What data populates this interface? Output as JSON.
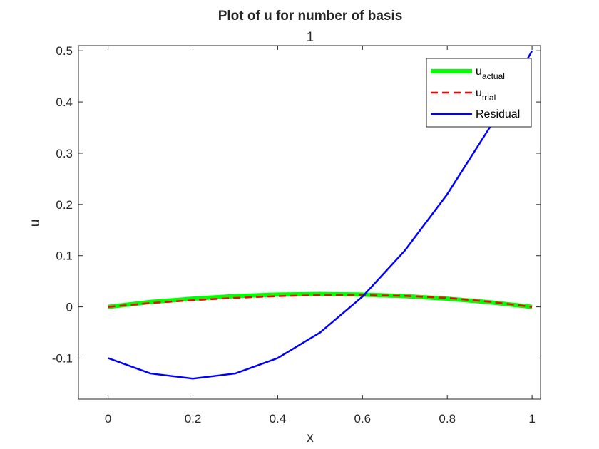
{
  "chart_data": {
    "type": "line",
    "title": "Plot of u for number of basis",
    "subtitle": "1",
    "xlabel": "x",
    "ylabel": "u",
    "xlim": [
      -0.07,
      1.02
    ],
    "ylim": [
      -0.18,
      0.51
    ],
    "xticks": [
      0,
      0.2,
      0.4,
      0.6,
      0.8,
      1
    ],
    "xtick_labels": [
      "0",
      "0.2",
      "0.4",
      "0.6",
      "0.8",
      "1"
    ],
    "yticks": [
      -0.1,
      0,
      0.1,
      0.2,
      0.3,
      0.4,
      0.5
    ],
    "ytick_labels": [
      "-0.1",
      "0",
      "0.1",
      "0.2",
      "0.3",
      "0.4",
      "0.5"
    ],
    "grid": false,
    "legend_position": "top-right",
    "series": [
      {
        "name": "u_actual",
        "legend_main": "u",
        "legend_sub": "actual",
        "color": "#00ff00",
        "style": "solid",
        "x": [
          0,
          0.1,
          0.2,
          0.3,
          0.4,
          0.5,
          0.6,
          0.7,
          0.8,
          0.9,
          1.0
        ],
        "y": [
          0,
          0.0095,
          0.016,
          0.021,
          0.024,
          0.025,
          0.024,
          0.021,
          0.016,
          0.009,
          0
        ]
      },
      {
        "name": "u_trial",
        "legend_main": "u",
        "legend_sub": "trial",
        "color": "#ff0000",
        "style": "dashed",
        "x": [
          0,
          0.1,
          0.2,
          0.3,
          0.4,
          0.5,
          0.6,
          0.7,
          0.8,
          0.9,
          1.0
        ],
        "y": [
          0,
          0.0075,
          0.013,
          0.0175,
          0.021,
          0.023,
          0.023,
          0.0215,
          0.0175,
          0.01,
          0
        ]
      },
      {
        "name": "Residual",
        "legend_main": "Residual",
        "legend_sub": "",
        "color": "#0000ff",
        "style": "solid",
        "x": [
          0,
          0.1,
          0.2,
          0.3,
          0.4,
          0.5,
          0.6,
          0.7,
          0.8,
          0.9,
          1.0
        ],
        "y": [
          -0.1,
          -0.13,
          -0.14,
          -0.13,
          -0.1,
          -0.05,
          0.02,
          0.11,
          0.22,
          0.35,
          0.5
        ]
      }
    ]
  }
}
